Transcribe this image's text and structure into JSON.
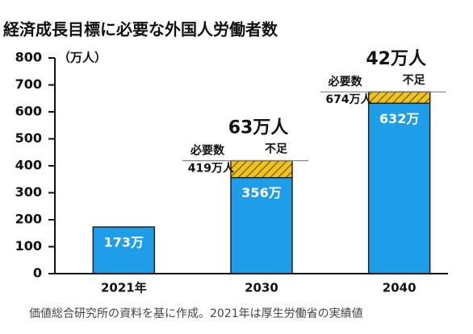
{
  "chart_data": {
    "type": "stacked_bar",
    "title": "経済成長目標に必要な外国人労働者数",
    "y_unit": "（万人）",
    "categories": [
      "2021年",
      "2030",
      "2040"
    ],
    "series": [
      {
        "color": "#1e9ee8",
        "values": [
          173,
          356,
          632
        ],
        "value_labels": [
          "173万",
          "356万",
          "632万"
        ]
      },
      {
        "name": "不足",
        "color": "#f2c31b",
        "values": [
          null,
          63,
          42
        ],
        "value_labels": [
          null,
          "63万人",
          "42万人"
        ]
      }
    ],
    "totals": {
      "name": "必要数",
      "values": [
        null,
        419,
        674
      ],
      "value_labels": [
        null,
        "419万人",
        "674万人"
      ]
    },
    "ylim": [
      0,
      800
    ],
    "yticks": [
      0,
      100,
      200,
      300,
      400,
      500,
      600,
      700,
      800
    ],
    "footnote": "価値総合研究所の資料を基に作成。2021年は厚生労働省の実績値"
  }
}
